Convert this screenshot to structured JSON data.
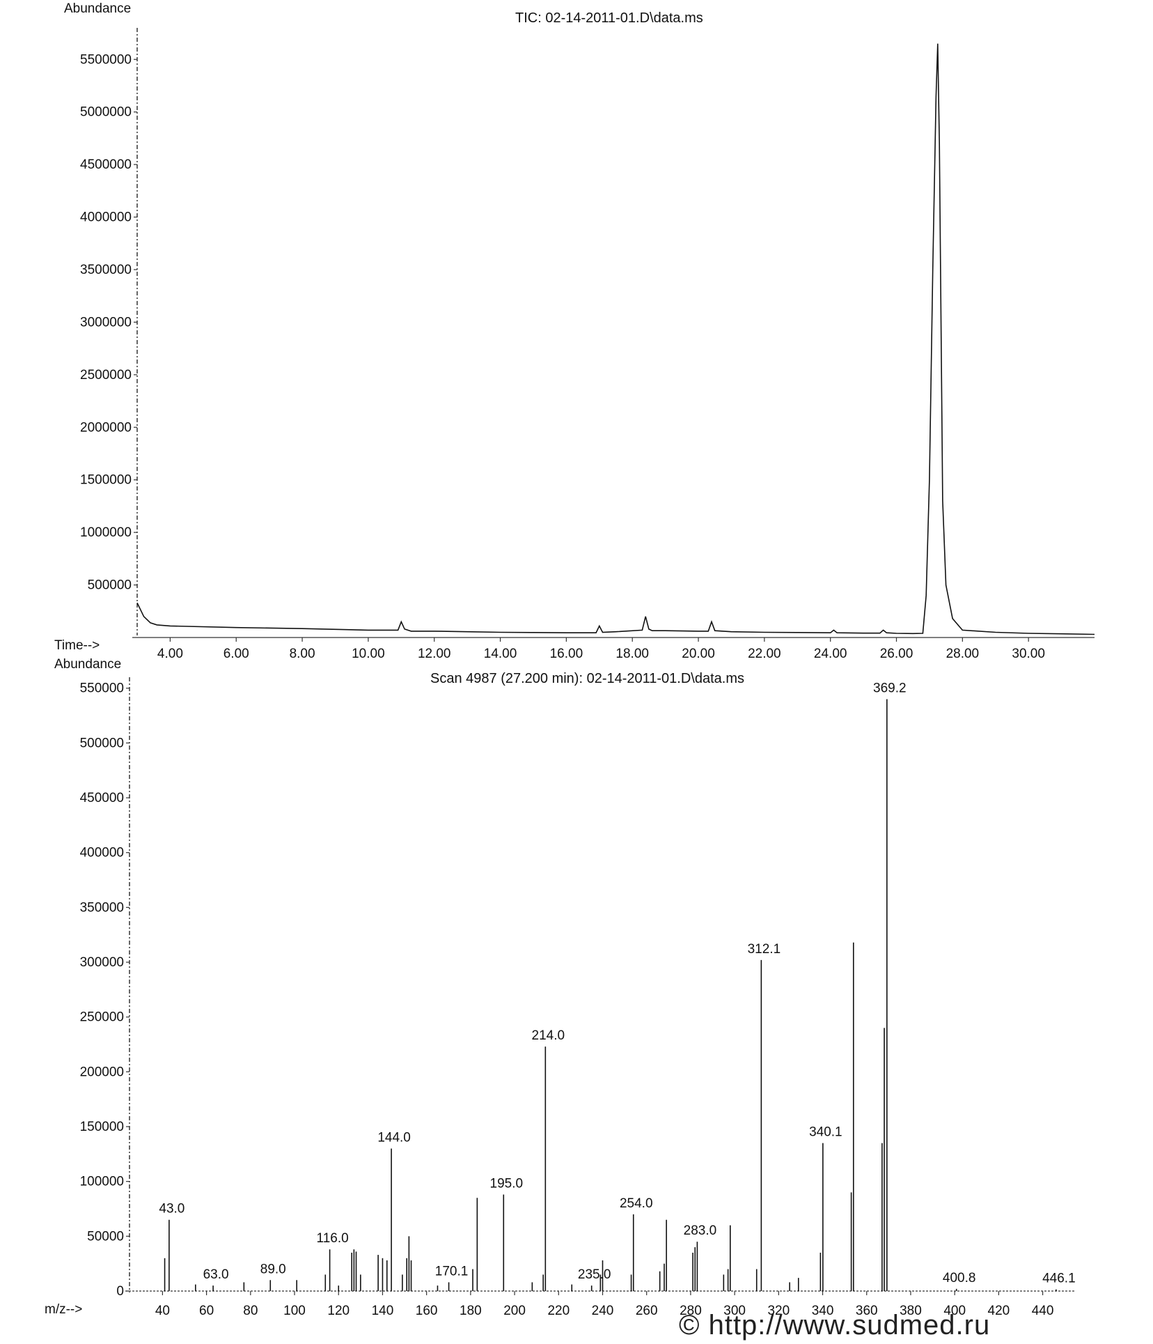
{
  "chart_data": [
    {
      "type": "line",
      "title": "TIC: 02-14-2011-01.D\\data.ms",
      "ylabel": "Abundance",
      "xlabel": "Time-->",
      "xlim": [
        3.0,
        32.0
      ],
      "ylim": [
        0,
        5800000
      ],
      "x_ticks": [
        "4.00",
        "6.00",
        "8.00",
        "10.00",
        "12.00",
        "14.00",
        "16.00",
        "18.00",
        "20.00",
        "22.00",
        "24.00",
        "26.00",
        "28.00",
        "30.00"
      ],
      "y_ticks": [
        "500000",
        "1000000",
        "1500000",
        "2000000",
        "2500000",
        "3000000",
        "3500000",
        "4000000",
        "4500000",
        "5000000",
        "5500000"
      ],
      "series": [
        {
          "x": [
            3.0,
            3.2,
            3.4,
            3.6,
            4.0,
            6.0,
            8.0,
            10.0,
            10.9,
            11.0,
            11.1,
            11.3,
            12.0,
            13.0,
            14.0,
            15.0,
            16.0,
            16.9,
            17.0,
            17.1,
            17.5,
            18.3,
            18.4,
            18.5,
            18.6,
            19.0,
            20.0,
            20.3,
            20.4,
            20.5,
            21.0,
            22.0,
            23.0,
            24.0,
            24.1,
            24.2,
            25.0,
            25.5,
            25.6,
            25.7,
            26.0,
            26.5,
            26.8,
            26.9,
            27.0,
            27.1,
            27.2,
            27.25,
            27.3,
            27.4,
            27.5,
            27.7,
            28.0,
            29.0,
            30.0,
            31.0,
            32.0
          ],
          "y": [
            330000,
            200000,
            140000,
            120000,
            110000,
            95000,
            85000,
            70000,
            70000,
            150000,
            80000,
            60000,
            60000,
            55000,
            50000,
            48000,
            45000,
            45000,
            110000,
            50000,
            55000,
            70000,
            200000,
            80000,
            65000,
            65000,
            60000,
            60000,
            150000,
            65000,
            55000,
            50000,
            48000,
            45000,
            70000,
            45000,
            42000,
            42000,
            70000,
            45000,
            40000,
            38000,
            40000,
            400000,
            1500000,
            3500000,
            5150000,
            5650000,
            4700000,
            1300000,
            500000,
            180000,
            70000,
            50000,
            40000,
            35000,
            30000
          ]
        }
      ]
    },
    {
      "type": "bar",
      "title": "Scan 4987 (27.200 min): 02-14-2011-01.D\\data.ms",
      "ylabel": "Abundance",
      "xlabel": "m/z-->",
      "xlim": [
        25,
        455
      ],
      "ylim": [
        0,
        560000
      ],
      "x_ticks": [
        "40",
        "60",
        "80",
        "100",
        "120",
        "140",
        "160",
        "180",
        "200",
        "220",
        "240",
        "260",
        "280",
        "300",
        "320",
        "340",
        "360",
        "380",
        "400",
        "420",
        "440"
      ],
      "y_ticks": [
        "0",
        "50000",
        "100000",
        "150000",
        "200000",
        "250000",
        "300000",
        "350000",
        "400000",
        "450000",
        "500000",
        "550000"
      ],
      "peaks": [
        {
          "mz": 41,
          "y": 30000
        },
        {
          "mz": 43.0,
          "y": 65000,
          "label": "43.0"
        },
        {
          "mz": 55,
          "y": 6000
        },
        {
          "mz": 63.0,
          "y": 5000,
          "label": "63.0"
        },
        {
          "mz": 77,
          "y": 8000
        },
        {
          "mz": 89.0,
          "y": 10000,
          "label": "89.0"
        },
        {
          "mz": 101,
          "y": 10000
        },
        {
          "mz": 114,
          "y": 15000
        },
        {
          "mz": 116.0,
          "y": 38000,
          "label": "116.0"
        },
        {
          "mz": 120,
          "y": 5000
        },
        {
          "mz": 126,
          "y": 35000
        },
        {
          "mz": 127,
          "y": 38000
        },
        {
          "mz": 128,
          "y": 36000
        },
        {
          "mz": 130,
          "y": 15000
        },
        {
          "mz": 138,
          "y": 33000
        },
        {
          "mz": 140,
          "y": 30000
        },
        {
          "mz": 142,
          "y": 28000
        },
        {
          "mz": 144.0,
          "y": 130000,
          "label": "144.0"
        },
        {
          "mz": 149,
          "y": 15000
        },
        {
          "mz": 151,
          "y": 30000
        },
        {
          "mz": 152,
          "y": 50000
        },
        {
          "mz": 153,
          "y": 28000
        },
        {
          "mz": 165,
          "y": 5000
        },
        {
          "mz": 170.1,
          "y": 8000,
          "label": "170.1"
        },
        {
          "mz": 181,
          "y": 20000
        },
        {
          "mz": 183,
          "y": 85000
        },
        {
          "mz": 195.0,
          "y": 88000,
          "label": "195.0"
        },
        {
          "mz": 208,
          "y": 8000
        },
        {
          "mz": 213,
          "y": 15000
        },
        {
          "mz": 214.0,
          "y": 223000,
          "label": "214.0"
        },
        {
          "mz": 226,
          "y": 6000
        },
        {
          "mz": 235.0,
          "y": 5000,
          "label": "235.0"
        },
        {
          "mz": 239,
          "y": 15000
        },
        {
          "mz": 240,
          "y": 28000
        },
        {
          "mz": 253,
          "y": 15000
        },
        {
          "mz": 254.0,
          "y": 70000,
          "label": "254.0"
        },
        {
          "mz": 266,
          "y": 18000
        },
        {
          "mz": 268,
          "y": 25000
        },
        {
          "mz": 269,
          "y": 65000
        },
        {
          "mz": 281,
          "y": 35000
        },
        {
          "mz": 282,
          "y": 40000
        },
        {
          "mz": 283.0,
          "y": 45000,
          "label": "283.0"
        },
        {
          "mz": 295,
          "y": 15000
        },
        {
          "mz": 297,
          "y": 20000
        },
        {
          "mz": 298,
          "y": 60000
        },
        {
          "mz": 310,
          "y": 20000
        },
        {
          "mz": 312.1,
          "y": 302000,
          "label": "312.1"
        },
        {
          "mz": 325,
          "y": 8000
        },
        {
          "mz": 329,
          "y": 12000
        },
        {
          "mz": 339,
          "y": 35000
        },
        {
          "mz": 340.1,
          "y": 135000,
          "label": "340.1"
        },
        {
          "mz": 353,
          "y": 90000
        },
        {
          "mz": 354,
          "y": 318000
        },
        {
          "mz": 367,
          "y": 135000
        },
        {
          "mz": 368,
          "y": 240000
        },
        {
          "mz": 369.2,
          "y": 540000,
          "label": "369.2"
        },
        {
          "mz": 400.8,
          "y": 2000,
          "label": "400.8"
        },
        {
          "mz": 446.1,
          "y": 1500,
          "label": "446.1"
        }
      ]
    }
  ],
  "watermark": {
    "text": "© http://www.sudmed.ru"
  }
}
